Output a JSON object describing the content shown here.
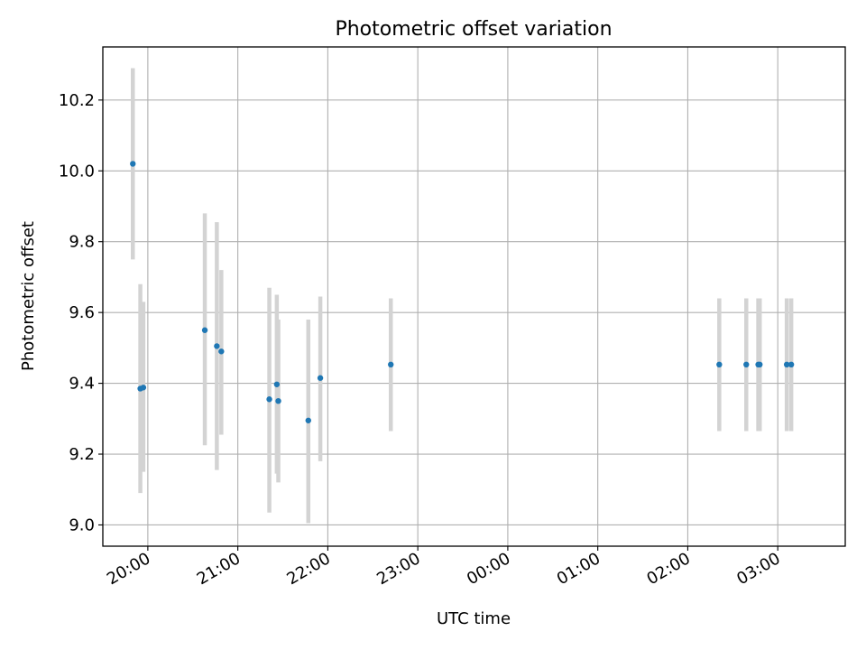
{
  "chart_data": {
    "type": "scatter",
    "title": "Photometric offset variation",
    "xlabel": "UTC time",
    "ylabel": "Photometric offset",
    "x_unit": "UTC clock time",
    "xlim": [
      "19:30",
      "03:45"
    ],
    "ylim": [
      8.94,
      10.35
    ],
    "x_ticks": [
      "20:00",
      "21:00",
      "22:00",
      "23:00",
      "00:00",
      "01:00",
      "02:00",
      "03:00"
    ],
    "y_ticks": [
      9.0,
      9.2,
      9.4,
      9.6,
      9.8,
      10.0,
      10.2
    ],
    "grid": true,
    "legend": "none",
    "colors": {
      "marker": "#1f77b4",
      "errorbar": "#d3d3d3",
      "grid": "#b0b0b0"
    },
    "points": [
      {
        "x": "19:50",
        "y": 10.02,
        "yerr_low": 9.75,
        "yerr_high": 10.29
      },
      {
        "x": "19:55",
        "y": 9.385,
        "yerr_low": 9.09,
        "yerr_high": 9.68
      },
      {
        "x": "19:57",
        "y": 9.388,
        "yerr_low": 9.15,
        "yerr_high": 9.63
      },
      {
        "x": "20:38",
        "y": 9.55,
        "yerr_low": 9.225,
        "yerr_high": 9.88
      },
      {
        "x": "20:46",
        "y": 9.505,
        "yerr_low": 9.155,
        "yerr_high": 9.855
      },
      {
        "x": "20:49",
        "y": 9.49,
        "yerr_low": 9.255,
        "yerr_high": 9.72
      },
      {
        "x": "21:21",
        "y": 9.355,
        "yerr_low": 9.035,
        "yerr_high": 9.67
      },
      {
        "x": "21:26",
        "y": 9.397,
        "yerr_low": 9.145,
        "yerr_high": 9.65
      },
      {
        "x": "21:27",
        "y": 9.35,
        "yerr_low": 9.12,
        "yerr_high": 9.58
      },
      {
        "x": "21:47",
        "y": 9.295,
        "yerr_low": 9.005,
        "yerr_high": 9.58
      },
      {
        "x": "21:55",
        "y": 9.415,
        "yerr_low": 9.18,
        "yerr_high": 9.645
      },
      {
        "x": "22:42",
        "y": 9.453,
        "yerr_low": 9.265,
        "yerr_high": 9.64
      },
      {
        "x": "02:21",
        "y": 9.453,
        "yerr_low": 9.265,
        "yerr_high": 9.64
      },
      {
        "x": "02:39",
        "y": 9.453,
        "yerr_low": 9.265,
        "yerr_high": 9.64
      },
      {
        "x": "02:47",
        "y": 9.453,
        "yerr_low": 9.265,
        "yerr_high": 9.64
      },
      {
        "x": "02:48",
        "y": 9.453,
        "yerr_low": 9.265,
        "yerr_high": 9.64
      },
      {
        "x": "03:06",
        "y": 9.453,
        "yerr_low": 9.265,
        "yerr_high": 9.64
      },
      {
        "x": "03:09",
        "y": 9.453,
        "yerr_low": 9.265,
        "yerr_high": 9.64
      }
    ]
  }
}
